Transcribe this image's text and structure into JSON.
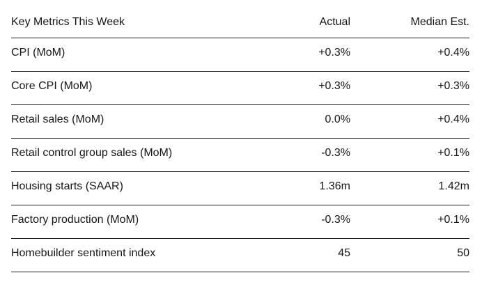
{
  "chart_data": {
    "type": "table",
    "title": "Key Metrics This Week",
    "columns": [
      "Key Metrics This Week",
      "Actual",
      "Median Est."
    ],
    "rows": [
      {
        "label": "CPI (MoM)",
        "actual": "+0.3%",
        "median_est": "+0.4%"
      },
      {
        "label": "Core CPI (MoM)",
        "actual": "+0.3%",
        "median_est": "+0.3%"
      },
      {
        "label": "Retail sales (MoM)",
        "actual": "0.0%",
        "median_est": "+0.4%"
      },
      {
        "label": "Retail control group sales (MoM)",
        "actual": "-0.3%",
        "median_est": "+0.1%"
      },
      {
        "label": "Housing starts (SAAR)",
        "actual": "1.36m",
        "median_est": "1.42m"
      },
      {
        "label": "Factory production (MoM)",
        "actual": "-0.3%",
        "median_est": "+0.1%"
      },
      {
        "label": "Homebuilder sentiment index",
        "actual": "45",
        "median_est": "50"
      }
    ],
    "layout": {
      "grid": "horizontal-rules-only",
      "numeric_columns_alignment": "right"
    },
    "colors": {
      "background": "#ffffff",
      "text": "#161616",
      "rule": "#1a1a1a"
    }
  }
}
